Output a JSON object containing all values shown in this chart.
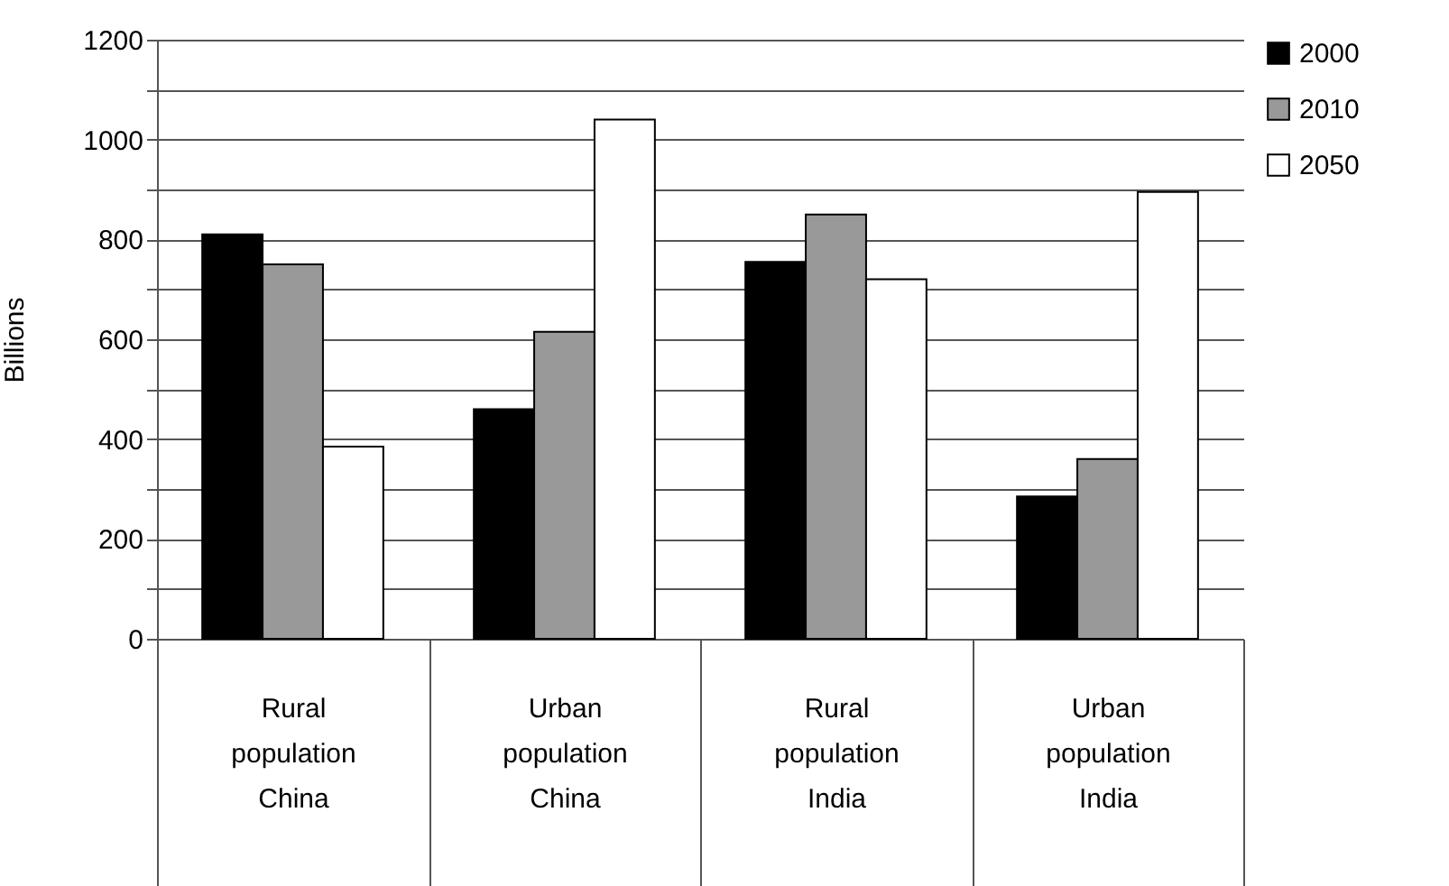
{
  "chart_data": {
    "type": "bar",
    "ylabel": "Billions",
    "categories": [
      "Rural\npopulation\n\nChina",
      "Urban\npopulation\n\nChina",
      "Rural\npopulation\n\nIndia",
      "Urban\npopulation\n\nIndia"
    ],
    "series": [
      {
        "name": "2000",
        "color": "#000000",
        "values": [
          810,
          460,
          755,
          285
        ]
      },
      {
        "name": "2010",
        "color": "#999999",
        "values": [
          750,
          615,
          850,
          360
        ]
      },
      {
        "name": "2050",
        "color": "#ffffff",
        "values": [
          385,
          1040,
          720,
          895
        ]
      }
    ],
    "ylim": [
      0,
      1200
    ],
    "yticks": [
      0,
      {
        "value": 100,
        "label": null
      },
      200,
      {
        "value": 300,
        "label": null
      },
      400,
      {
        "value": 500,
        "label": null
      },
      600,
      {
        "value": 700,
        "label": null
      },
      800,
      {
        "value": 900,
        "label": null
      },
      1000,
      {
        "value": 1100,
        "label": null
      },
      1200
    ],
    "grid": "y",
    "legend": "right"
  }
}
